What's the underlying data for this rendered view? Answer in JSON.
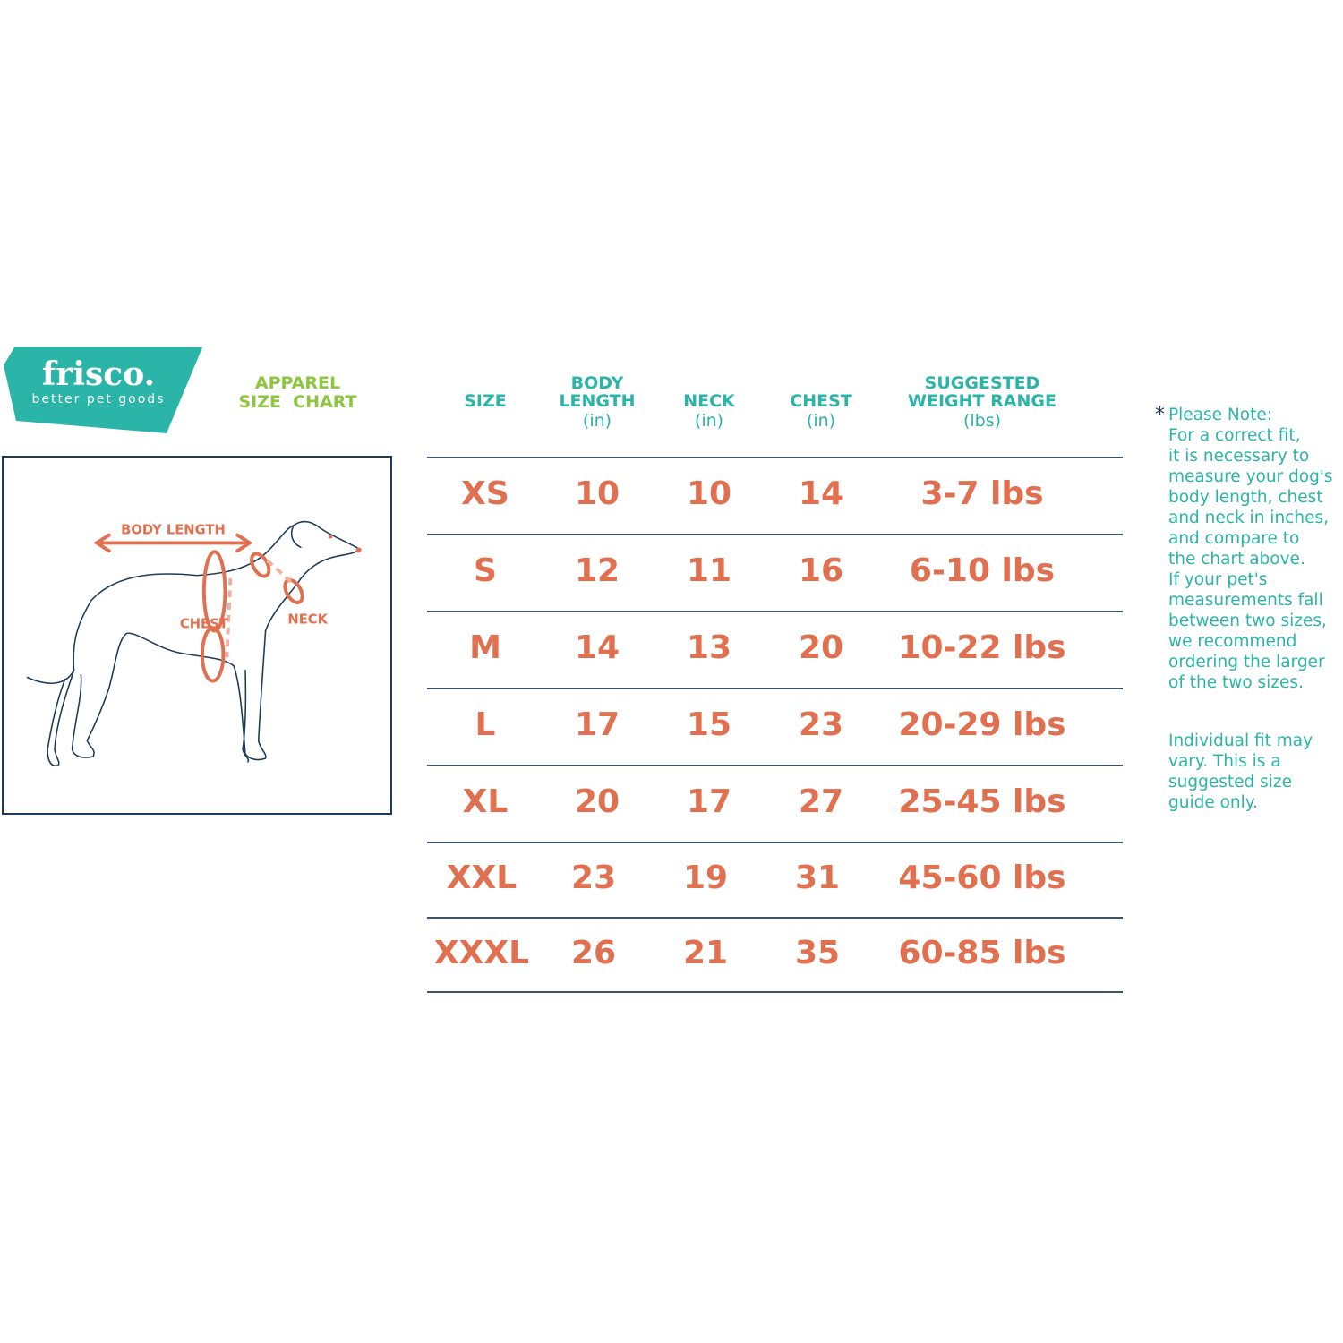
{
  "brand": {
    "name": "frisco.",
    "tagline": "better pet goods"
  },
  "title": {
    "line1": "APPAREL",
    "line2": "SIZE  CHART"
  },
  "diagram": {
    "labels": {
      "body_length": "BODY LENGTH",
      "chest": "CHEST",
      "neck": "NECK"
    }
  },
  "table": {
    "headers": [
      {
        "line1": "",
        "line2": "SIZE",
        "unit": ""
      },
      {
        "line1": "BODY",
        "line2": "LENGTH",
        "unit": "(in)"
      },
      {
        "line1": "",
        "line2": "NECK",
        "unit": "(in)"
      },
      {
        "line1": "",
        "line2": "CHEST",
        "unit": "(in)"
      },
      {
        "line1": "SUGGESTED",
        "line2": "WEIGHT RANGE",
        "unit": "(lbs)"
      }
    ],
    "rows": [
      [
        "XS",
        "10",
        "10",
        "14",
        "3-7 lbs"
      ],
      [
        "S",
        "12",
        "11",
        "16",
        "6-10 lbs"
      ],
      [
        "M",
        "14",
        "13",
        "20",
        "10-22 lbs"
      ],
      [
        "L",
        "17",
        "15",
        "23",
        "20-29 lbs"
      ],
      [
        "XL",
        "20",
        "17",
        "27",
        "25-45 lbs"
      ],
      [
        "XXL",
        "23",
        "19",
        "31",
        "45-60 lbs"
      ],
      [
        "XXXL",
        "26",
        "21",
        "35",
        "60-85 lbs"
      ]
    ]
  },
  "note": {
    "star": "*",
    "lines": [
      "Please Note:",
      "For a correct fit,",
      "it is necessary to",
      "measure your dog's",
      "body length, chest",
      "and neck in inches,",
      "and compare to",
      "the chart above.",
      "If your pet's",
      "measurements fall",
      "between two sizes,",
      "we recommend",
      "ordering the larger",
      "of the two sizes."
    ],
    "lines2": [
      "Individual fit may",
      "vary. This is a",
      "suggested size",
      "guide only."
    ]
  },
  "colors": {
    "teal": "#2bb5a8",
    "green": "#8dc63f",
    "orange": "#e0704f",
    "navy": "#1f3b57"
  }
}
